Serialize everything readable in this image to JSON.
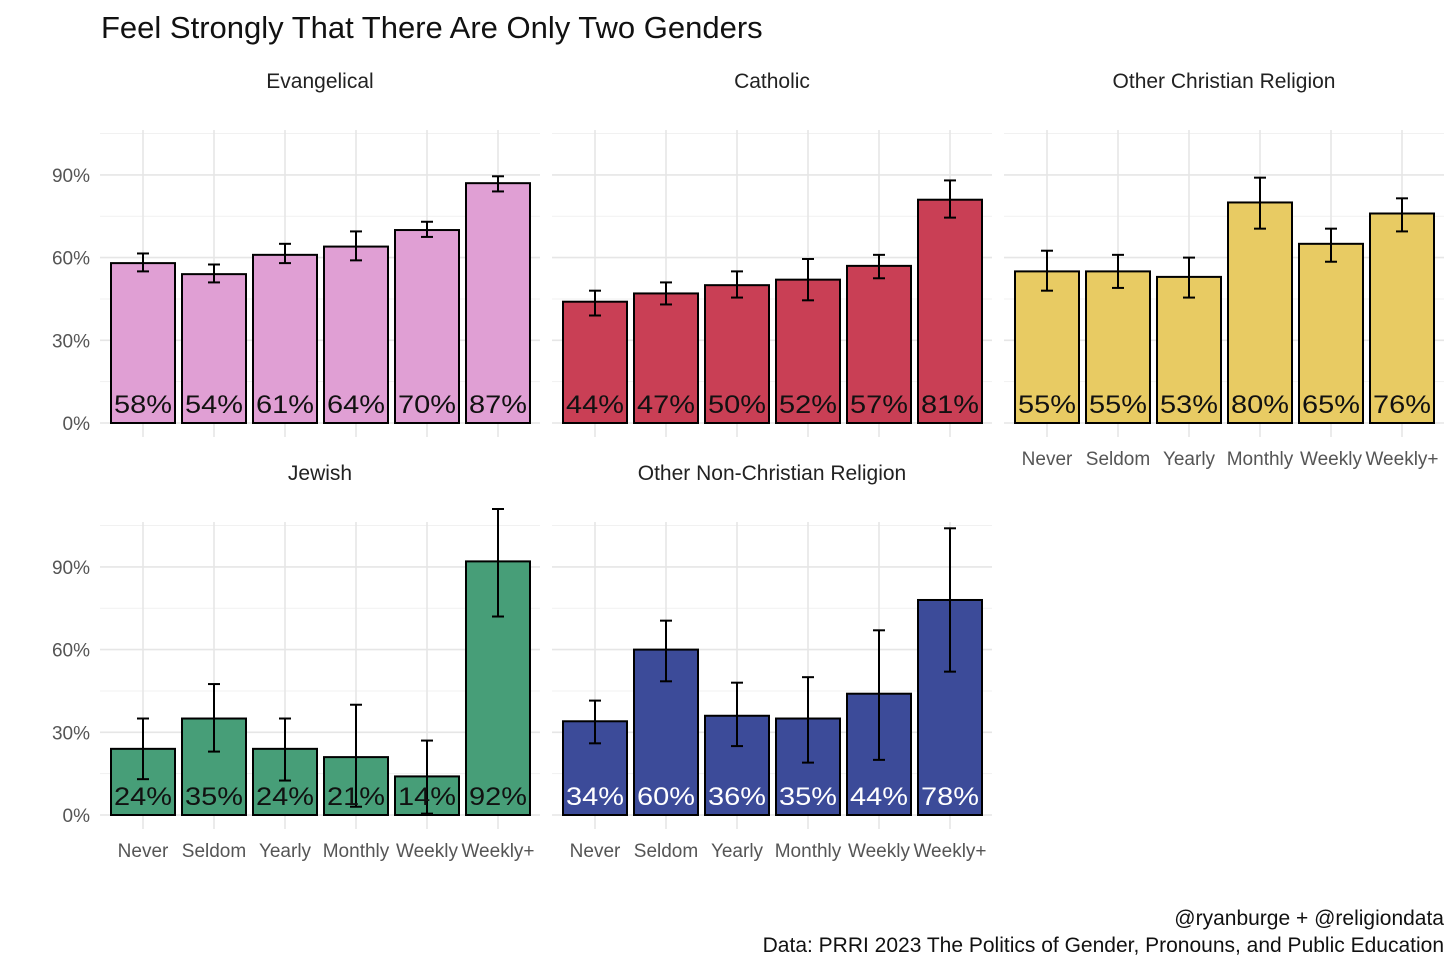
{
  "chart_data": {
    "type": "bar",
    "title": "Feel Strongly That There Are Only Two Genders",
    "categories": [
      "Never",
      "Seldom",
      "Yearly",
      "Monthly",
      "Weekly",
      "Weekly+"
    ],
    "ylim": [
      0,
      117
    ],
    "yticks": [
      0,
      30,
      60,
      90
    ],
    "ytick_labels": [
      "0%",
      "30%",
      "60%",
      "90%"
    ],
    "grid": true,
    "panels": [
      {
        "name": "Evangelical",
        "color": "#e09fd4",
        "label_color": "#111111",
        "values": [
          58,
          54,
          61,
          64,
          70,
          87
        ],
        "labels": [
          "58%",
          "54%",
          "61%",
          "64%",
          "70%",
          "87%"
        ],
        "ci_low": [
          55,
          51,
          58,
          59,
          67.5,
          84
        ],
        "ci_high": [
          61.5,
          57.5,
          65,
          69.5,
          73,
          89.5
        ]
      },
      {
        "name": "Catholic",
        "color": "#c93f55",
        "label_color": "#111111",
        "values": [
          44,
          47,
          50,
          52,
          57,
          81
        ],
        "labels": [
          "44%",
          "47%",
          "50%",
          "52%",
          "57%",
          "81%"
        ],
        "ci_low": [
          39,
          43,
          45.5,
          44.5,
          52.5,
          74.5
        ],
        "ci_high": [
          48,
          51,
          55,
          59.5,
          61,
          88
        ]
      },
      {
        "name": "Other Christian Religion",
        "color": "#e8cb63",
        "label_color": "#111111",
        "values": [
          55,
          55,
          53,
          80,
          65,
          76
        ],
        "labels": [
          "55%",
          "55%",
          "53%",
          "80%",
          "65%",
          "76%"
        ],
        "ci_low": [
          48,
          49,
          45.5,
          70.5,
          58.5,
          69.5
        ],
        "ci_high": [
          62.5,
          61,
          60,
          89,
          70.5,
          81.5
        ]
      },
      {
        "name": "Jewish",
        "color": "#479e78",
        "label_color": "#111111",
        "values": [
          24,
          35,
          24,
          21,
          14,
          92
        ],
        "labels": [
          "24%",
          "35%",
          "24%",
          "21%",
          "14%",
          "92%"
        ],
        "ci_low": [
          13,
          23,
          12.5,
          3,
          0.5,
          72
        ],
        "ci_high": [
          35,
          47.5,
          35,
          40,
          27,
          111
        ]
      },
      {
        "name": "Other Non-Christian Religion",
        "color": "#3c4b99",
        "label_color": "#ffffff",
        "values": [
          34,
          60,
          36,
          35,
          44,
          78
        ],
        "labels": [
          "34%",
          "60%",
          "36%",
          "35%",
          "44%",
          "78%"
        ],
        "ci_low": [
          26,
          48.5,
          25,
          19,
          20,
          52
        ],
        "ci_high": [
          41.5,
          70.5,
          48,
          50,
          67,
          104
        ]
      }
    ],
    "caption_line1": "@ryanburge + @religiondata",
    "caption_line2": "Data: PRRI 2023 The Politics of Gender, Pronouns, and Public Education"
  }
}
